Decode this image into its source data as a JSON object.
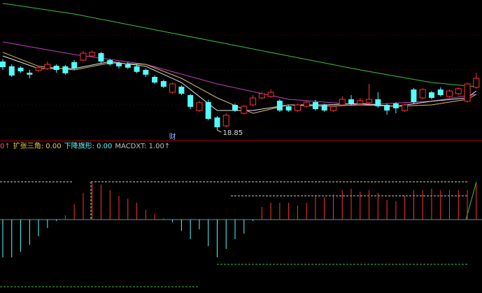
{
  "chart_data": [
    {
      "type": "candlestick",
      "ylim": [
        18.5,
        23.5
      ],
      "up_color": "#ff3232",
      "down_color": "#54fcfc",
      "open": [
        21.3,
        21.13,
        21.08,
        20.9,
        20.98,
        21.05,
        21.15,
        21.13,
        21.28,
        21.35,
        21.5,
        21.6,
        21.35,
        21.25,
        21.2,
        21.13,
        21.0,
        20.75,
        20.6,
        20.2,
        20.4,
        20.1,
        19.55,
        19.85,
        19.3,
        19.0,
        19.75,
        19.45,
        19.75,
        20.0,
        20.05,
        19.9,
        19.7,
        19.55,
        19.7,
        19.85,
        19.75,
        19.55,
        19.75,
        19.95,
        19.8,
        19.83,
        19.95,
        19.75,
        19.8,
        19.55,
        20.3,
        20.0,
        20.2,
        20.3,
        20.05,
        20.15,
        19.88,
        20.38
      ],
      "high": [
        21.38,
        21.2,
        21.13,
        21.0,
        21.15,
        21.3,
        21.2,
        21.18,
        21.35,
        21.68,
        21.68,
        21.65,
        21.4,
        21.3,
        21.28,
        21.2,
        21.05,
        20.8,
        20.65,
        20.55,
        20.45,
        20.15,
        19.9,
        19.93,
        19.35,
        19.45,
        19.8,
        19.75,
        20.1,
        20.2,
        20.3,
        19.95,
        19.75,
        19.8,
        19.9,
        19.93,
        19.8,
        19.78,
        20.05,
        20.1,
        20.0,
        20.5,
        20.2,
        19.8,
        19.85,
        19.8,
        20.35,
        20.35,
        20.25,
        20.38,
        20.3,
        20.38,
        20.55,
        20.9
      ],
      "low": [
        21.0,
        20.75,
        20.9,
        20.7,
        20.93,
        21.0,
        20.9,
        20.83,
        21.0,
        21.3,
        21.45,
        21.25,
        21.15,
        21.05,
        21.03,
        20.88,
        20.75,
        20.5,
        20.35,
        20.15,
        20.1,
        19.6,
        19.5,
        19.2,
        18.85,
        18.95,
        19.5,
        19.4,
        19.7,
        19.95,
        20.0,
        19.5,
        19.5,
        19.5,
        19.65,
        19.55,
        19.5,
        19.5,
        19.7,
        19.75,
        19.75,
        19.78,
        19.65,
        19.4,
        19.45,
        19.5,
        19.8,
        19.95,
        19.95,
        20.05,
        20.0,
        20.1,
        19.83,
        20.33
      ],
      "close": [
        21.1,
        20.8,
        20.95,
        20.83,
        21.08,
        21.2,
        21.0,
        20.88,
        21.05,
        21.6,
        21.63,
        21.3,
        21.2,
        21.13,
        21.08,
        20.93,
        20.83,
        20.55,
        20.4,
        20.5,
        20.15,
        19.68,
        19.83,
        19.25,
        18.95,
        19.38,
        19.55,
        19.7,
        20.0,
        20.15,
        20.2,
        19.55,
        19.55,
        19.75,
        19.85,
        19.6,
        19.55,
        19.7,
        19.95,
        19.8,
        19.9,
        19.95,
        19.7,
        19.55,
        19.63,
        19.75,
        19.85,
        20.3,
        20.0,
        20.1,
        20.25,
        20.33,
        20.5,
        20.7
      ],
      "lines": [
        {
          "color": "#3fbf3f",
          "x": [
            0,
            8,
            16,
            24,
            32,
            40,
            48,
            53
          ],
          "values": [
            23.38,
            23.0,
            22.5,
            22.0,
            21.5,
            21.0,
            20.55,
            20.4
          ]
        },
        {
          "color": "#c040c0",
          "x": [
            0,
            8,
            16,
            24,
            32,
            40,
            48,
            53
          ],
          "values": [
            22.0,
            21.55,
            21.2,
            20.5,
            19.95,
            19.75,
            19.88,
            20.13
          ]
        },
        {
          "color": "#e8e8e8",
          "x": [
            0,
            4,
            8,
            12,
            16,
            20,
            24,
            28,
            32,
            36,
            40,
            44,
            48,
            52,
            53
          ],
          "values": [
            21.5,
            21.05,
            21.05,
            21.3,
            21.13,
            20.55,
            19.55,
            19.55,
            19.75,
            19.75,
            19.8,
            19.7,
            19.88,
            20.0,
            20.25
          ]
        },
        {
          "color": "#d8c060",
          "x": [
            0,
            4,
            8,
            12,
            16,
            20,
            24,
            28,
            32,
            36,
            40,
            44,
            48,
            52,
            53
          ],
          "values": [
            21.63,
            21.13,
            21.0,
            21.25,
            21.2,
            20.7,
            20.0,
            19.45,
            19.75,
            19.7,
            19.75,
            19.7,
            19.75,
            19.95,
            20.13
          ]
        }
      ],
      "annotations": [
        {
          "text": "18.85",
          "index": 24,
          "value": 18.85
        },
        {
          "text": "财",
          "index": 19
        }
      ]
    },
    {
      "type": "bar",
      "ylim": [
        -1.05,
        1.05
      ],
      "up_color": "#ff3232",
      "down_color": "#54fcfc",
      "legend": [
        {
          "text": "0↑",
          "color": "#ff5050"
        },
        {
          "text": "扩张三角: 0.00",
          "color": "#e8d040"
        },
        {
          "text": "下降旗形: 0.00",
          "color": "#54fcfc"
        },
        {
          "text": "MACDXT: 1.00↑",
          "color": "#c0c0c0"
        }
      ],
      "values": [
        -0.54,
        -0.54,
        -0.46,
        -0.36,
        -0.24,
        -0.12,
        -0.02,
        0.06,
        0.22,
        0.38,
        0.52,
        0.5,
        0.42,
        0.34,
        0.3,
        0.24,
        0.14,
        0.08,
        0.02,
        -0.04,
        -0.16,
        -0.28,
        -0.14,
        -0.38,
        -0.54,
        -0.42,
        -0.28,
        -0.2,
        -0.02,
        0.18,
        0.24,
        0.24,
        0.24,
        0.2,
        0.24,
        0.34,
        0.32,
        0.36,
        0.42,
        0.44,
        0.4,
        0.42,
        0.38,
        0.28,
        0.26,
        0.34,
        0.42,
        0.42,
        0.44,
        0.42,
        0.42,
        0.42,
        0.42,
        0.52
      ]
    }
  ]
}
